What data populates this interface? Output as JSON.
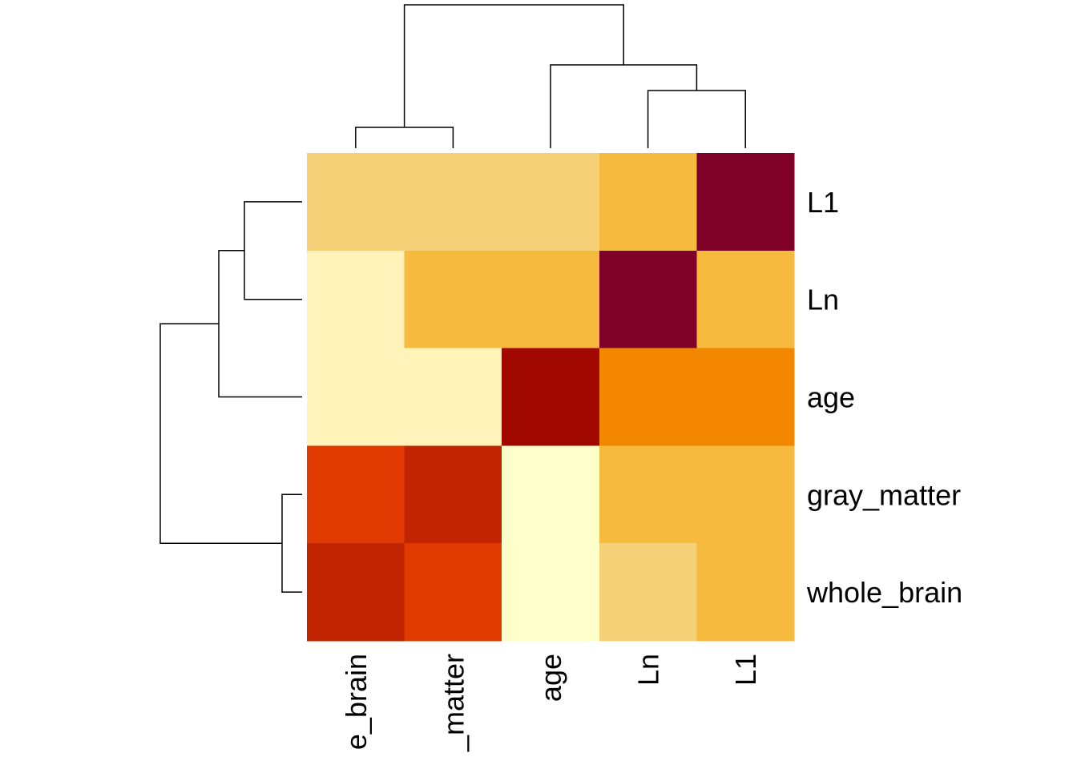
{
  "chart_data": {
    "type": "heatmap",
    "title": "",
    "xlabel": "",
    "ylabel": "",
    "columns": [
      "whole_brain",
      "gray_matter",
      "age",
      "Ln",
      "L1"
    ],
    "rows": [
      "L1",
      "Ln",
      "age",
      "gray_matter",
      "whole_brain"
    ],
    "column_tick_labels": [
      "e_brain",
      "_matter",
      "age",
      "Ln",
      "L1"
    ],
    "row_tick_labels": [
      "L1",
      "Ln",
      "age",
      "gray_matter",
      "whole_brain"
    ],
    "color_scale": [
      "#FFFFCC",
      "#FFF3BA",
      "#F6D077",
      "#F6BA3F",
      "#F38800",
      "#E03A00",
      "#C12400",
      "#A10800",
      "#7F0028"
    ],
    "values": [
      [
        2,
        2,
        2,
        3,
        8
      ],
      [
        1,
        3,
        3,
        8,
        3
      ],
      [
        1,
        1,
        7,
        4,
        4
      ],
      [
        5,
        6,
        0,
        3,
        3
      ],
      [
        6,
        5,
        0,
        2,
        3
      ]
    ],
    "column_dendrogram": "((whole_brain,gray_matter),(age,(Ln,L1)))",
    "row_dendrogram": "(((L1,Ln),age),(gray_matter,whole_brain))",
    "legend": false,
    "grid": false
  }
}
